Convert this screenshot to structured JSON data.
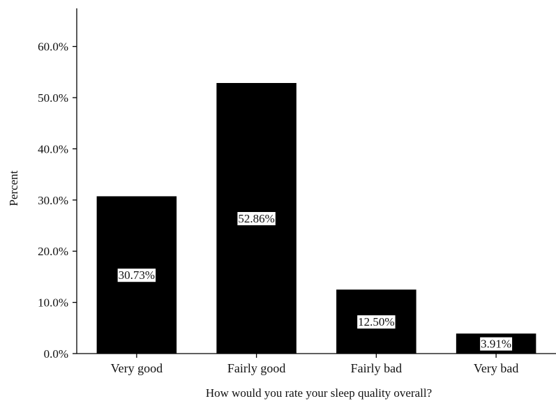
{
  "chart_data": {
    "type": "bar",
    "categories": [
      "Very good",
      "Fairly good",
      "Fairly bad",
      "Very bad"
    ],
    "values": [
      30.73,
      52.86,
      12.5,
      3.91
    ],
    "data_labels": [
      "30.73%",
      "52.86%",
      "12.50%",
      "3.91%"
    ],
    "xlabel": "How would you rate your sleep quality overall?",
    "ylabel": "Percent",
    "ylim": [
      0,
      60
    ],
    "yticks": [
      0,
      10,
      20,
      30,
      40,
      50,
      60
    ],
    "ytick_labels": [
      "0.0%",
      "10.0%",
      "20.0%",
      "30.0%",
      "40.0%",
      "50.0%",
      "60.0%"
    ],
    "grid": false,
    "legend": "none",
    "colors": {
      "bar": "#000000",
      "label_bg": "#ffffff",
      "axis": "#000000"
    }
  }
}
